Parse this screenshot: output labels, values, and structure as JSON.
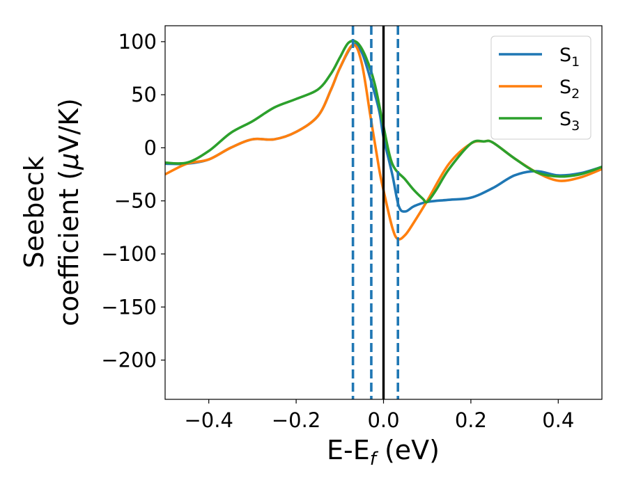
{
  "chart_data": {
    "type": "line",
    "xlabel": "E-E",
    "xlabel_sub": "f",
    "xlabel_unit": " (eV)",
    "ylabel_line1": "Seebeck",
    "ylabel_line2": "coefficient  (",
    "ylabel_mu": "μ",
    "ylabel_unit": "V/K)",
    "xlim": [
      -0.5,
      0.5
    ],
    "ylim": [
      -237,
      115
    ],
    "xticks": [
      -0.4,
      -0.2,
      0.0,
      0.2,
      0.4
    ],
    "xtick_labels": [
      "−0.4",
      "−0.2",
      "0.0",
      "0.2",
      "0.4"
    ],
    "yticks": [
      100,
      50,
      0,
      -50,
      -100,
      -150,
      -200
    ],
    "ytick_labels": [
      "100",
      "50",
      "0",
      "−50",
      "−100",
      "−150",
      "−200"
    ],
    "grid": false,
    "legend_position": "top-right",
    "vlines": [
      {
        "x": 0.0,
        "style": "solid",
        "color": "#000000"
      },
      {
        "x": -0.07,
        "style": "dashed",
        "color": "#1f77b4"
      },
      {
        "x": -0.028,
        "style": "dashed",
        "color": "#1f77b4"
      },
      {
        "x": 0.033,
        "style": "dashed",
        "color": "#1f77b4"
      }
    ],
    "series": [
      {
        "name": "S",
        "sub": "1",
        "color": "#1f77b4",
        "points": [
          [
            -0.5,
            -15
          ],
          [
            -0.45,
            -15
          ],
          [
            -0.4,
            -11
          ],
          [
            -0.35,
            0
          ],
          [
            -0.3,
            8
          ],
          [
            -0.25,
            8
          ],
          [
            -0.2,
            15
          ],
          [
            -0.15,
            30
          ],
          [
            -0.12,
            55
          ],
          [
            -0.1,
            75
          ],
          [
            -0.07,
            97
          ],
          [
            -0.05,
            90
          ],
          [
            -0.03,
            65
          ],
          [
            -0.01,
            35
          ],
          [
            0.0,
            10
          ],
          [
            0.02,
            -25
          ],
          [
            0.035,
            -55
          ],
          [
            0.05,
            -60
          ],
          [
            0.07,
            -55
          ],
          [
            0.1,
            -51
          ],
          [
            0.15,
            -49
          ],
          [
            0.2,
            -47
          ],
          [
            0.25,
            -38
          ],
          [
            0.3,
            -26
          ],
          [
            0.35,
            -22
          ],
          [
            0.4,
            -26
          ],
          [
            0.45,
            -24
          ],
          [
            0.5,
            -18
          ]
        ]
      },
      {
        "name": "S",
        "sub": "2",
        "color": "#ff7f0e",
        "points": [
          [
            -0.5,
            -25
          ],
          [
            -0.45,
            -15
          ],
          [
            -0.4,
            -11
          ],
          [
            -0.35,
            0
          ],
          [
            -0.3,
            8
          ],
          [
            -0.25,
            8
          ],
          [
            -0.2,
            15
          ],
          [
            -0.15,
            30
          ],
          [
            -0.12,
            55
          ],
          [
            -0.1,
            75
          ],
          [
            -0.07,
            97
          ],
          [
            -0.05,
            80
          ],
          [
            -0.03,
            30
          ],
          [
            -0.01,
            -20
          ],
          [
            0.0,
            -40
          ],
          [
            0.02,
            -75
          ],
          [
            0.033,
            -86
          ],
          [
            0.05,
            -82
          ],
          [
            0.07,
            -70
          ],
          [
            0.1,
            -50
          ],
          [
            0.15,
            -15
          ],
          [
            0.2,
            4
          ],
          [
            0.23,
            6
          ],
          [
            0.25,
            5
          ],
          [
            0.3,
            -10
          ],
          [
            0.35,
            -23
          ],
          [
            0.4,
            -31
          ],
          [
            0.45,
            -28
          ],
          [
            0.5,
            -20
          ]
        ]
      },
      {
        "name": "S",
        "sub": "3",
        "color": "#2ca02c",
        "points": [
          [
            -0.5,
            -14
          ],
          [
            -0.45,
            -14
          ],
          [
            -0.4,
            -3
          ],
          [
            -0.35,
            14
          ],
          [
            -0.3,
            25
          ],
          [
            -0.25,
            38
          ],
          [
            -0.2,
            46
          ],
          [
            -0.15,
            55
          ],
          [
            -0.12,
            70
          ],
          [
            -0.1,
            85
          ],
          [
            -0.08,
            99
          ],
          [
            -0.06,
            99
          ],
          [
            -0.04,
            85
          ],
          [
            -0.02,
            60
          ],
          [
            0.0,
            20
          ],
          [
            0.02,
            -15
          ],
          [
            0.05,
            -30
          ],
          [
            0.07,
            -40
          ],
          [
            0.09,
            -48
          ],
          [
            0.1,
            -51
          ],
          [
            0.12,
            -40
          ],
          [
            0.15,
            -20
          ],
          [
            0.2,
            4
          ],
          [
            0.23,
            6
          ],
          [
            0.25,
            5
          ],
          [
            0.3,
            -10
          ],
          [
            0.35,
            -23
          ],
          [
            0.4,
            -27
          ],
          [
            0.45,
            -25
          ],
          [
            0.5,
            -18
          ]
        ]
      }
    ]
  }
}
